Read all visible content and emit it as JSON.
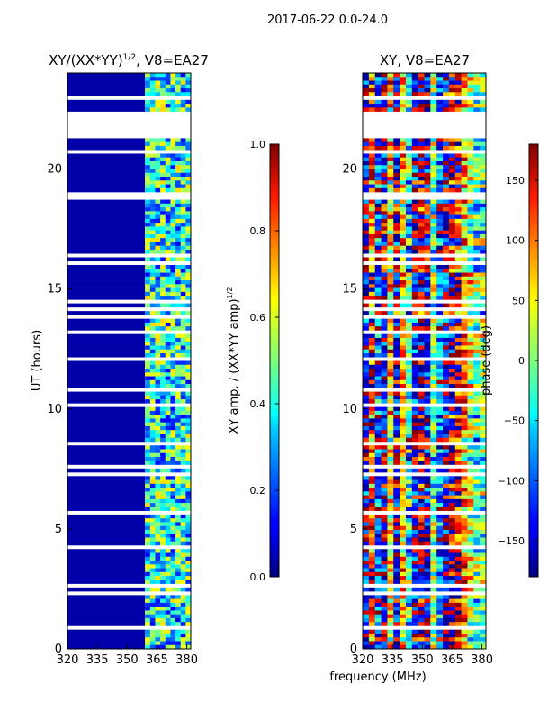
{
  "figure": {
    "suptitle": "2017-06-22 0.0-24.0",
    "xlabel": "frequency (MHz)"
  },
  "chart_data": [
    {
      "type": "heatmap",
      "title": "XY/(XX*YY)^1/2, V8=EA27",
      "title_main": "XY/(XX*YY)",
      "title_sup": "1/2",
      "title_tail": ", V8=EA27",
      "ylabel": "UT (hours)",
      "xlim": [
        320,
        382
      ],
      "ylim": [
        0,
        24
      ],
      "xticks": [
        320,
        335,
        350,
        365,
        380
      ],
      "yticks": [
        0,
        5,
        10,
        15,
        20
      ],
      "colormap": "jet",
      "colorbar": {
        "label_main": "XY amp. / (XX*YY amp)",
        "label_sup": "1/2",
        "range": [
          0.0,
          1.0
        ],
        "ticks": [
          "0.0",
          "0.2",
          "0.4",
          "0.6",
          "0.8",
          "1.0"
        ]
      },
      "description_bands": [
        {
          "freq": [
            320,
            359
          ],
          "value": 0.0
        },
        {
          "freq": [
            359,
            382
          ],
          "value_range": [
            0.1,
            0.7
          ]
        }
      ],
      "flagged_time_ranges": [
        [
          21.5,
          22.4
        ]
      ]
    },
    {
      "type": "heatmap",
      "title": "XY, V8=EA27",
      "xlim": [
        320,
        382
      ],
      "ylim": [
        0,
        24
      ],
      "xticks": [
        320,
        335,
        350,
        365,
        380
      ],
      "yticks": [
        0,
        5,
        10,
        15,
        20
      ],
      "colormap": "jet",
      "colorbar": {
        "label": "phase (deg)",
        "range": [
          -180,
          180
        ],
        "ticks": [
          "−150",
          "−100",
          "−50",
          "0",
          "50",
          "100",
          "150"
        ]
      },
      "flagged_time_ranges": [
        [
          21.5,
          22.4
        ]
      ]
    }
  ]
}
